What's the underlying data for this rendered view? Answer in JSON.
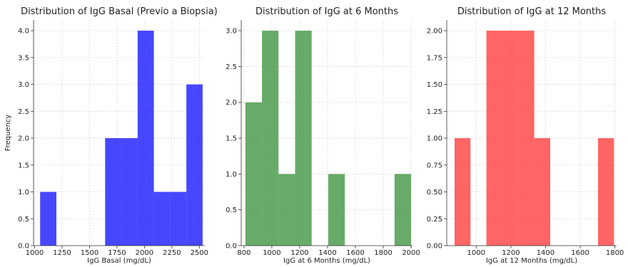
{
  "chart_data": [
    {
      "type": "bar",
      "title": "Distribution of IgG Basal (Previo a Biopsia)",
      "xlabel": "IgG Basal (mg/dL)",
      "ylabel": "Frequency",
      "color": "#0000ff",
      "xlim": [
        990,
        2550
      ],
      "ylim": [
        0,
        4.2
      ],
      "xticks": [
        1000,
        1250,
        1500,
        1750,
        2000,
        2250,
        2500
      ],
      "xtick_labels": [
        "1000",
        "1250",
        "1500",
        "1750",
        "2000",
        "2250",
        "2500"
      ],
      "yticks": [
        0,
        0.5,
        1,
        1.5,
        2,
        2.5,
        3,
        3.5,
        4
      ],
      "ytick_labels": [
        "0.0",
        "0.5",
        "1.0",
        "1.5",
        "2.0",
        "2.5",
        "3.0",
        "3.5",
        "4.0"
      ],
      "grid": true,
      "bins": [
        {
          "x0": 1050,
          "x1": 1198,
          "count": 1
        },
        {
          "x0": 1198,
          "x1": 1346,
          "count": 0
        },
        {
          "x0": 1346,
          "x1": 1494,
          "count": 0
        },
        {
          "x0": 1494,
          "x1": 1642,
          "count": 0
        },
        {
          "x0": 1642,
          "x1": 1790,
          "count": 2
        },
        {
          "x0": 1790,
          "x1": 1938,
          "count": 2
        },
        {
          "x0": 1938,
          "x1": 2086,
          "count": 4
        },
        {
          "x0": 2086,
          "x1": 2234,
          "count": 1
        },
        {
          "x0": 2234,
          "x1": 2382,
          "count": 1
        },
        {
          "x0": 2382,
          "x1": 2530,
          "count": 3
        }
      ]
    },
    {
      "type": "bar",
      "title": "Distribution of IgG at 6 Months",
      "xlabel": "IgG at 6 Months (mg/dL)",
      "ylabel": "",
      "color": "#2e8b2e",
      "xlim": [
        780,
        2010
      ],
      "ylim": [
        0,
        3.15
      ],
      "xticks": [
        800,
        1000,
        1200,
        1400,
        1600,
        1800,
        2000
      ],
      "xtick_labels": [
        "800",
        "1000",
        "1200",
        "1400",
        "1600",
        "1800",
        "2000"
      ],
      "yticks": [
        0,
        0.5,
        1,
        1.5,
        2,
        2.5,
        3
      ],
      "ytick_labels": [
        "0.0",
        "0.5",
        "1.0",
        "1.5",
        "2.0",
        "2.5",
        "3.0"
      ],
      "grid": true,
      "bins": [
        {
          "x0": 810,
          "x1": 929,
          "count": 2
        },
        {
          "x0": 929,
          "x1": 1048,
          "count": 3
        },
        {
          "x0": 1048,
          "x1": 1167,
          "count": 1
        },
        {
          "x0": 1167,
          "x1": 1286,
          "count": 3
        },
        {
          "x0": 1286,
          "x1": 1405,
          "count": 0
        },
        {
          "x0": 1405,
          "x1": 1524,
          "count": 1
        },
        {
          "x0": 1524,
          "x1": 1643,
          "count": 0
        },
        {
          "x0": 1643,
          "x1": 1762,
          "count": 0
        },
        {
          "x0": 1762,
          "x1": 1881,
          "count": 0
        },
        {
          "x0": 1881,
          "x1": 2000,
          "count": 1
        }
      ]
    },
    {
      "type": "bar",
      "title": "Distribution of IgG at 12 Months",
      "xlabel": "IgG at 12 Months (mg/dL)",
      "ylabel": "",
      "color": "#ff2a2a",
      "xlim": [
        830,
        1810
      ],
      "ylim": [
        0,
        2.1
      ],
      "xticks": [
        1000,
        1200,
        1400,
        1600,
        1800
      ],
      "xtick_labels": [
        "1000",
        "1200",
        "1400",
        "1600",
        "1800"
      ],
      "yticks": [
        0,
        0.25,
        0.5,
        0.75,
        1,
        1.25,
        1.5,
        1.75,
        2
      ],
      "ytick_labels": [
        "0.00",
        "0.25",
        "0.50",
        "0.75",
        "1.00",
        "1.25",
        "1.50",
        "1.75",
        "2.00"
      ],
      "grid": true,
      "bins": [
        {
          "x0": 875,
          "x1": 967,
          "count": 1
        },
        {
          "x0": 967,
          "x1": 1059,
          "count": 0
        },
        {
          "x0": 1059,
          "x1": 1151,
          "count": 2
        },
        {
          "x0": 1151,
          "x1": 1243,
          "count": 2
        },
        {
          "x0": 1243,
          "x1": 1335,
          "count": 2
        },
        {
          "x0": 1335,
          "x1": 1427,
          "count": 1
        },
        {
          "x0": 1427,
          "x1": 1519,
          "count": 0
        },
        {
          "x0": 1519,
          "x1": 1611,
          "count": 0
        },
        {
          "x0": 1611,
          "x1": 1703,
          "count": 0
        },
        {
          "x0": 1703,
          "x1": 1795,
          "count": 1
        }
      ]
    }
  ]
}
